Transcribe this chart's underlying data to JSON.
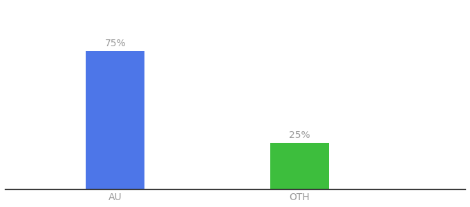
{
  "categories": [
    "AU",
    "OTH"
  ],
  "values": [
    75,
    25
  ],
  "bar_colors": [
    "#4d76e8",
    "#3dbe3d"
  ],
  "label_texts": [
    "75%",
    "25%"
  ],
  "label_color": "#999999",
  "ylim": [
    0,
    100
  ],
  "background_color": "#ffffff",
  "label_fontsize": 10,
  "tick_fontsize": 10,
  "bar_width": 0.32,
  "x_positions": [
    1,
    2
  ],
  "xlim": [
    0.4,
    2.9
  ]
}
